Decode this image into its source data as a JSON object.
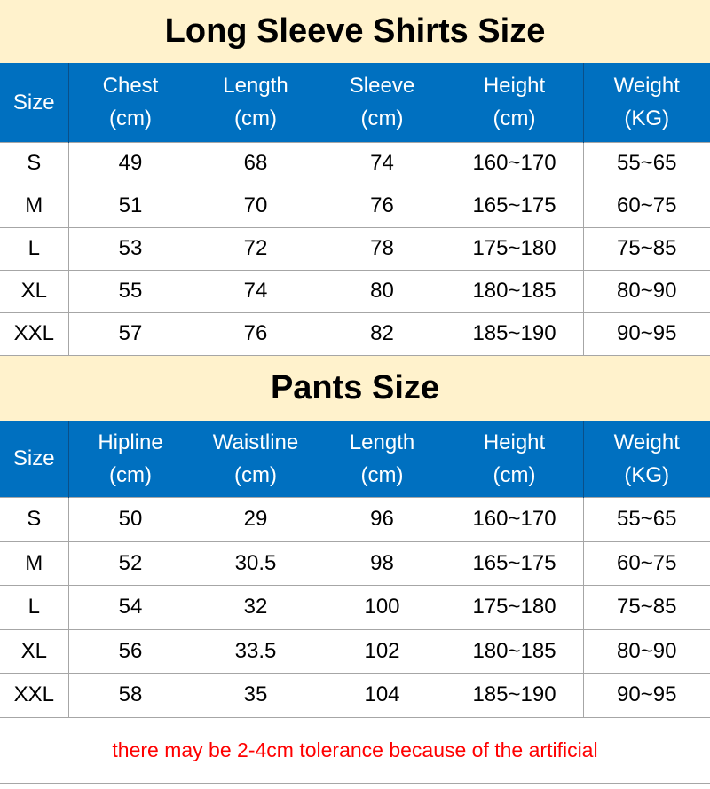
{
  "shirts": {
    "title": "Long Sleeve Shirts Size",
    "headers": [
      [
        "Size",
        ""
      ],
      [
        "Chest",
        "(cm)"
      ],
      [
        "Length",
        "(cm)"
      ],
      [
        "Sleeve",
        "(cm)"
      ],
      [
        "Height",
        "(cm)"
      ],
      [
        "Weight",
        "(KG)"
      ]
    ],
    "rows": [
      [
        "S",
        "49",
        "68",
        "74",
        "160~170",
        "55~65"
      ],
      [
        "M",
        "51",
        "70",
        "76",
        "165~175",
        "60~75"
      ],
      [
        "L",
        "53",
        "72",
        "78",
        "175~180",
        "75~85"
      ],
      [
        "XL",
        "55",
        "74",
        "80",
        "180~185",
        "80~90"
      ],
      [
        "XXL",
        "57",
        "76",
        "82",
        "185~190",
        "90~95"
      ]
    ]
  },
  "pants": {
    "title": "Pants Size",
    "headers": [
      [
        "Size",
        ""
      ],
      [
        "Hipline",
        "(cm)"
      ],
      [
        "Waistline",
        "(cm)"
      ],
      [
        "Length",
        "(cm)"
      ],
      [
        "Height",
        "(cm)"
      ],
      [
        "Weight",
        "(KG)"
      ]
    ],
    "rows": [
      [
        "S",
        "50",
        "29",
        "96",
        "160~170",
        "55~65"
      ],
      [
        "M",
        "52",
        "30.5",
        "98",
        "165~175",
        "60~75"
      ],
      [
        "L",
        "54",
        "32",
        "100",
        "175~180",
        "75~85"
      ],
      [
        "XL",
        "56",
        "33.5",
        "102",
        "180~185",
        "80~90"
      ],
      [
        "XXL",
        "58",
        "35",
        "104",
        "185~190",
        "90~95"
      ]
    ]
  },
  "footer_note": "there may be 2-4cm tolerance because of the artificial",
  "colors": {
    "header_bg": "#0070c0",
    "title_bg": "#fff2cc",
    "note": "#ff0000"
  }
}
